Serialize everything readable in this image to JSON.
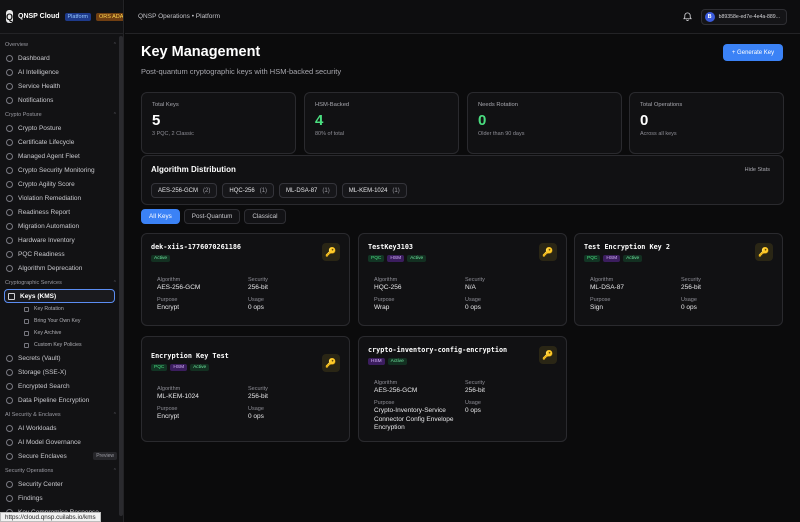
{
  "brand": {
    "name": "QNSP Cloud",
    "tag1": "Platform",
    "tag2": "ORS ADA"
  },
  "sidebar": {
    "sections": [
      {
        "label": "Overview",
        "items": [
          "Dashboard",
          "AI Intelligence",
          "Service Health",
          "Notifications"
        ]
      },
      {
        "label": "Crypto Posture",
        "items": [
          "Crypto Posture",
          "Certificate Lifecycle",
          "Managed Agent Fleet",
          "Crypto Security Monitoring",
          "Crypto Agility Score",
          "Violation Remediation",
          "Readiness Report",
          "Migration Automation",
          "Hardware Inventory",
          "PQC Readiness",
          "Algorithm Deprecation"
        ]
      },
      {
        "label": "Cryptographic Services",
        "active_item": "Keys (KMS)",
        "subitems": [
          "Key Rotation",
          "Bring Your Own Key",
          "Key Archive",
          "Custom Key Policies"
        ],
        "items": [
          "Secrets (Vault)",
          "Storage (SSE-X)",
          "Encrypted Search",
          "Data Pipeline Encryption"
        ]
      },
      {
        "label": "AI Security & Enclaves",
        "items": [
          "AI Workloads",
          "AI Model Governance",
          "Secure Enclaves"
        ],
        "preview_label": "Preview"
      },
      {
        "label": "Security Operations",
        "items": [
          "Security Center",
          "Findings",
          "Key Compromise Response"
        ]
      }
    ]
  },
  "status_url": "https://cloud.qnsp.cuilabs.io/kms",
  "topbar": {
    "breadcrumb": "QNSP Operations • Platform",
    "user_initial": "B",
    "user_id": "b89358e-ed7e-4e4a-889..."
  },
  "page": {
    "title": "Key Management",
    "subtitle": "Post-quantum cryptographic keys with HSM-backed security",
    "generate_button": "+ Generate Key"
  },
  "stats": [
    {
      "label": "Total Keys",
      "value": "5",
      "note": "3 PQC, 2 Classic"
    },
    {
      "label": "HSM-Backed",
      "value": "4",
      "note": "80% of total"
    },
    {
      "label": "Needs Rotation",
      "value": "0",
      "note": "Older than 90 days"
    },
    {
      "label": "Total Operations",
      "value": "0",
      "note": "Across all keys"
    }
  ],
  "algorithm_distribution": {
    "title": "Algorithm Distribution",
    "hide_label": "Hide Stats",
    "chips": [
      {
        "name": "AES-256-GCM",
        "count": "(2)"
      },
      {
        "name": "HQC-256",
        "count": "(1)"
      },
      {
        "name": "ML-DSA-87",
        "count": "(1)"
      },
      {
        "name": "ML-KEM-1024",
        "count": "(1)"
      }
    ]
  },
  "filters": [
    "All Keys",
    "Post-Quantum",
    "Classical"
  ],
  "field_labels": {
    "algorithm": "Algorithm",
    "security": "Security",
    "purpose": "Purpose",
    "usage": "Usage"
  },
  "keys": [
    {
      "name": "dek-xiis-1776070261186",
      "badges": [
        "Active"
      ],
      "algorithm": "AES-256-GCM",
      "security": "256-bit",
      "purpose": "Encrypt",
      "usage": "0 ops"
    },
    {
      "name": "TestKey3103",
      "badges": [
        "PQC",
        "HSM",
        "Active"
      ],
      "algorithm": "HQC-256",
      "security": "N/A",
      "purpose": "Wrap",
      "usage": "0 ops"
    },
    {
      "name": "Test Encryption Key 2",
      "badges": [
        "PQC",
        "HSM",
        "Active"
      ],
      "algorithm": "ML-DSA-87",
      "security": "256-bit",
      "purpose": "Sign",
      "usage": "0 ops"
    },
    {
      "name": "Encryption Key Test",
      "badges": [
        "PQC",
        "HSM",
        "Active"
      ],
      "algorithm": "ML-KEM-1024",
      "security": "256-bit",
      "purpose": "Encrypt",
      "usage": "0 ops"
    },
    {
      "name": "crypto-inventory-config-encryption",
      "badges": [
        "HSM",
        "Active"
      ],
      "algorithm": "AES-256-GCM",
      "security": "256-bit",
      "purpose": "Crypto-Inventory-Service Connector Config Envelope Encryption",
      "usage": "0 ops"
    }
  ]
}
